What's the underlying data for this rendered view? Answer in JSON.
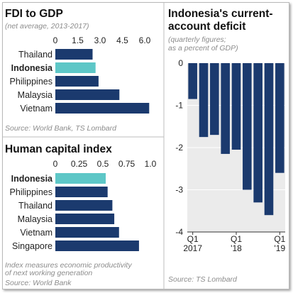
{
  "colors": {
    "bar": "#1b3a6e",
    "highlight": "#5ec7c7",
    "plot_bg": "#ebebeb",
    "divider": "#bdbdbd"
  },
  "chart_data": [
    {
      "type": "bar",
      "orientation": "horizontal",
      "title": "FDI to GDP",
      "subtitle": "(net average, 2013-2017)",
      "source": "Source: World Bank, TS Lombard",
      "categories": [
        "Thailand",
        "Indonesia",
        "Philippines",
        "Malaysia",
        "Vietnam"
      ],
      "values": [
        2.5,
        2.7,
        2.9,
        4.3,
        6.3
      ],
      "highlight": "Indonesia",
      "xlim": [
        0,
        6.0
      ],
      "xticks": [
        "0",
        "1.5",
        "3.0",
        "4.5",
        "6.0"
      ],
      "tick_values": [
        0,
        1.5,
        3.0,
        4.5,
        6.0
      ],
      "grid": false
    },
    {
      "type": "bar",
      "orientation": "horizontal",
      "title": "Human capital index",
      "note": "Index measures economic productivity of next working generation",
      "source": "Source: World Bank",
      "categories": [
        "Indonesia",
        "Philippines",
        "Thailand",
        "Malaysia",
        "Vietnam",
        "Singapore"
      ],
      "values": [
        0.53,
        0.55,
        0.6,
        0.62,
        0.67,
        0.88
      ],
      "highlight": "Indonesia",
      "xlim": [
        0,
        1.0
      ],
      "xticks": [
        "0",
        "0.25",
        "0.5",
        "0.75",
        "1.0"
      ],
      "tick_values": [
        0,
        0.25,
        0.5,
        0.75,
        1.0
      ],
      "grid": false
    },
    {
      "type": "bar",
      "orientation": "vertical",
      "title": "Indonesia's current-account deficit",
      "subtitle": "(quarterly figures; as a percent of GDP)",
      "source": "Source: TS Lombard",
      "x": [
        "2017 Q1",
        "2017 Q2",
        "2017 Q3",
        "2017 Q4",
        "2018 Q1",
        "2018 Q2",
        "2018 Q3",
        "2018 Q4",
        "2019 Q1"
      ],
      "values": [
        -0.85,
        -1.75,
        -1.7,
        -2.15,
        -2.05,
        -3.0,
        -3.3,
        -3.6,
        -2.6
      ],
      "ylim": [
        -4,
        0
      ],
      "yticks": [
        "0",
        "-1",
        "-2",
        "-3",
        "-4"
      ],
      "tick_values": [
        0,
        -1,
        -2,
        -3,
        -4
      ],
      "xtick_top": [
        "Q1",
        "Q1",
        "Q1"
      ],
      "xtick_bottom": [
        "2017",
        "'18",
        "'19"
      ],
      "xtick_positions": [
        0,
        4,
        8
      ],
      "grid": true
    }
  ]
}
